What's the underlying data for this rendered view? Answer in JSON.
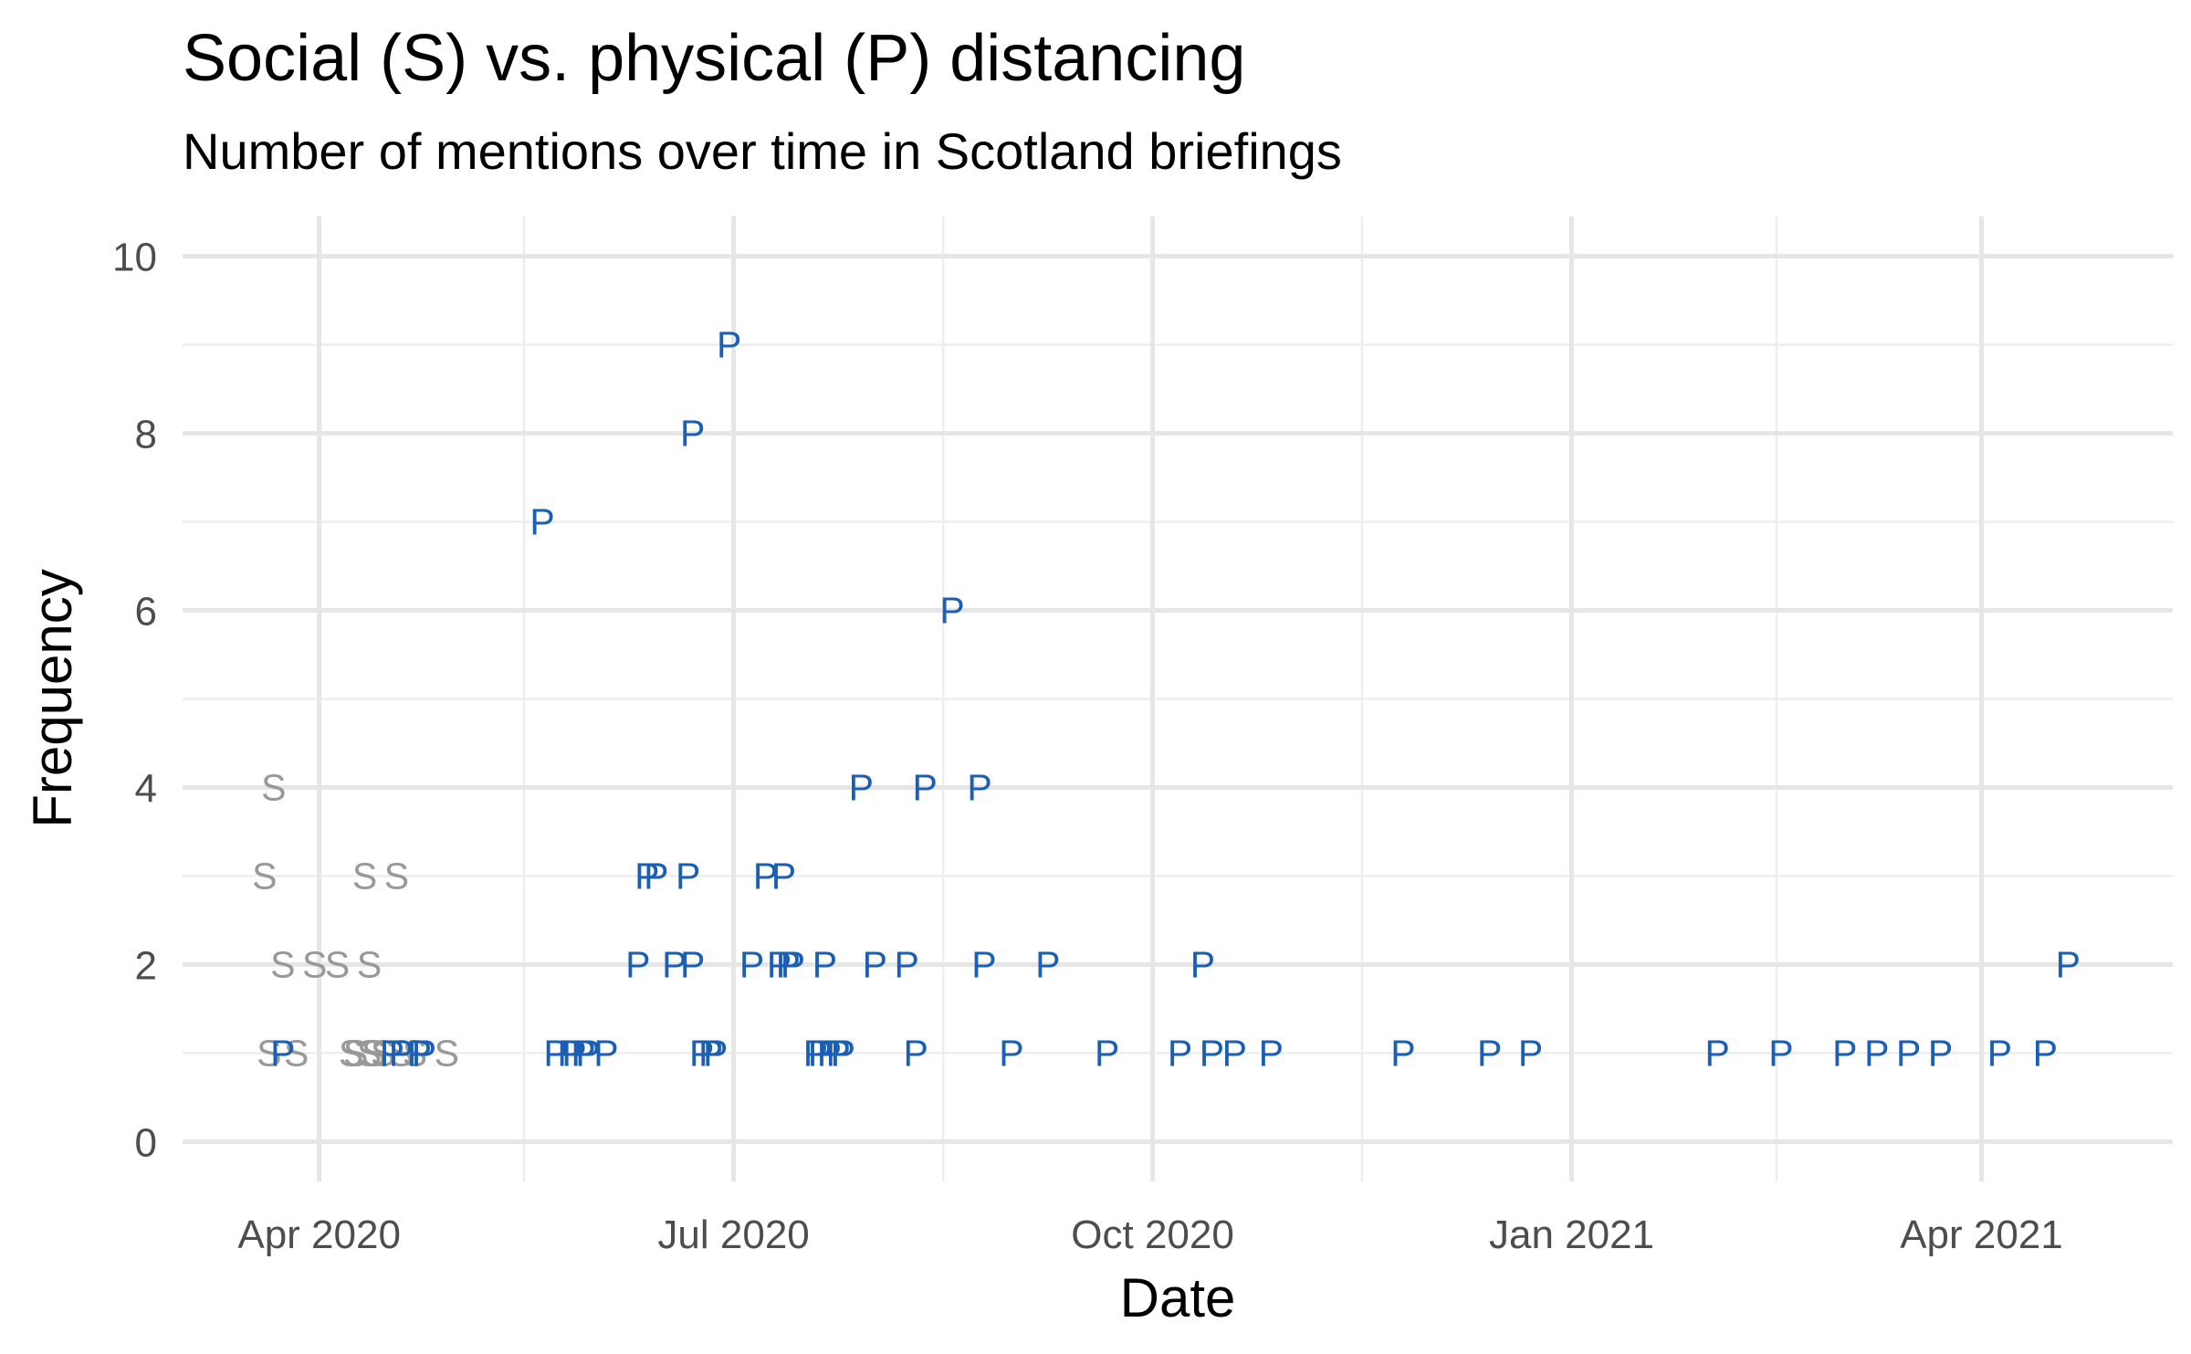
{
  "chart_data": {
    "type": "scatter",
    "title": "Social (S) vs. physical (P) distancing",
    "subtitle": "Number of mentions over time in Scotland briefings",
    "xlabel": "Date",
    "ylabel": "Frequency",
    "x_ticks": [
      {
        "date": "2020-04-01",
        "label": "Apr 2020"
      },
      {
        "date": "2020-07-01",
        "label": "Jul 2020"
      },
      {
        "date": "2020-10-01",
        "label": "Oct 2020"
      },
      {
        "date": "2021-01-01",
        "label": "Jan 2021"
      },
      {
        "date": "2021-04-01",
        "label": "Apr 2021"
      }
    ],
    "x_minor_ticks": [
      "2020-05-16",
      "2020-08-16",
      "2020-11-16",
      "2021-02-15"
    ],
    "xlim": [
      "2020-03-02",
      "2021-05-13"
    ],
    "y_ticks": [
      0,
      2,
      4,
      6,
      8,
      10
    ],
    "y_minor_ticks": [
      1,
      3,
      5,
      7,
      9
    ],
    "ylim": [
      -0.45,
      10.45
    ],
    "grid": true,
    "legend": "none",
    "series": [
      {
        "label": "S",
        "color": "#999999",
        "points": [
          {
            "x": "2020-03-22",
            "y": 4
          },
          {
            "x": "2020-03-20",
            "y": 3
          },
          {
            "x": "2020-03-24",
            "y": 2
          },
          {
            "x": "2020-03-21",
            "y": 1
          },
          {
            "x": "2020-03-27",
            "y": 1
          },
          {
            "x": "2020-03-31",
            "y": 2
          },
          {
            "x": "2020-04-05",
            "y": 2
          },
          {
            "x": "2020-04-12",
            "y": 2
          },
          {
            "x": "2020-04-11",
            "y": 3
          },
          {
            "x": "2020-04-18",
            "y": 3
          },
          {
            "x": "2020-04-08",
            "y": 1
          },
          {
            "x": "2020-04-09",
            "y": 1
          },
          {
            "x": "2020-04-12",
            "y": 1
          },
          {
            "x": "2020-04-13",
            "y": 1
          },
          {
            "x": "2020-04-15",
            "y": 1
          },
          {
            "x": "2020-04-19",
            "y": 1
          },
          {
            "x": "2020-04-22",
            "y": 1
          },
          {
            "x": "2020-04-29",
            "y": 1
          }
        ]
      },
      {
        "label": "P",
        "color": "#1a5fb4",
        "points": [
          {
            "x": "2020-03-24",
            "y": 1
          },
          {
            "x": "2020-04-17",
            "y": 1
          },
          {
            "x": "2020-04-19",
            "y": 1
          },
          {
            "x": "2020-04-23",
            "y": 1
          },
          {
            "x": "2020-04-24",
            "y": 1
          },
          {
            "x": "2020-05-20",
            "y": 7
          },
          {
            "x": "2020-05-23",
            "y": 1
          },
          {
            "x": "2020-05-26",
            "y": 1
          },
          {
            "x": "2020-05-27",
            "y": 1
          },
          {
            "x": "2020-05-29",
            "y": 1
          },
          {
            "x": "2020-05-30",
            "y": 1
          },
          {
            "x": "2020-06-03",
            "y": 1
          },
          {
            "x": "2020-06-10",
            "y": 2
          },
          {
            "x": "2020-06-12",
            "y": 3
          },
          {
            "x": "2020-06-14",
            "y": 3
          },
          {
            "x": "2020-06-18",
            "y": 2
          },
          {
            "x": "2020-06-21",
            "y": 3
          },
          {
            "x": "2020-06-22",
            "y": 2
          },
          {
            "x": "2020-06-22",
            "y": 8
          },
          {
            "x": "2020-06-24",
            "y": 1
          },
          {
            "x": "2020-06-26",
            "y": 1
          },
          {
            "x": "2020-06-27",
            "y": 1
          },
          {
            "x": "2020-06-30",
            "y": 9
          },
          {
            "x": "2020-07-05",
            "y": 2
          },
          {
            "x": "2020-07-08",
            "y": 3
          },
          {
            "x": "2020-07-11",
            "y": 2
          },
          {
            "x": "2020-07-12",
            "y": 3
          },
          {
            "x": "2020-07-13",
            "y": 2
          },
          {
            "x": "2020-07-14",
            "y": 2
          },
          {
            "x": "2020-07-19",
            "y": 1
          },
          {
            "x": "2020-07-20",
            "y": 1
          },
          {
            "x": "2020-07-21",
            "y": 2
          },
          {
            "x": "2020-07-22",
            "y": 1
          },
          {
            "x": "2020-07-24",
            "y": 1
          },
          {
            "x": "2020-07-25",
            "y": 1
          },
          {
            "x": "2020-07-29",
            "y": 4
          },
          {
            "x": "2020-08-01",
            "y": 2
          },
          {
            "x": "2020-08-08",
            "y": 2
          },
          {
            "x": "2020-08-10",
            "y": 1
          },
          {
            "x": "2020-08-12",
            "y": 4
          },
          {
            "x": "2020-08-18",
            "y": 6
          },
          {
            "x": "2020-08-24",
            "y": 4
          },
          {
            "x": "2020-08-25",
            "y": 2
          },
          {
            "x": "2020-08-31",
            "y": 1
          },
          {
            "x": "2020-09-08",
            "y": 2
          },
          {
            "x": "2020-09-21",
            "y": 1
          },
          {
            "x": "2020-10-07",
            "y": 1
          },
          {
            "x": "2020-10-12",
            "y": 2
          },
          {
            "x": "2020-10-14",
            "y": 1
          },
          {
            "x": "2020-10-19",
            "y": 1
          },
          {
            "x": "2020-10-27",
            "y": 1
          },
          {
            "x": "2020-11-25",
            "y": 1
          },
          {
            "x": "2020-12-14",
            "y": 1
          },
          {
            "x": "2020-12-23",
            "y": 1
          },
          {
            "x": "2021-02-02",
            "y": 1
          },
          {
            "x": "2021-02-16",
            "y": 1
          },
          {
            "x": "2021-03-02",
            "y": 1
          },
          {
            "x": "2021-03-09",
            "y": 1
          },
          {
            "x": "2021-03-16",
            "y": 1
          },
          {
            "x": "2021-03-23",
            "y": 1
          },
          {
            "x": "2021-04-05",
            "y": 1
          },
          {
            "x": "2021-04-15",
            "y": 1
          },
          {
            "x": "2021-04-20",
            "y": 2
          }
        ]
      }
    ]
  }
}
